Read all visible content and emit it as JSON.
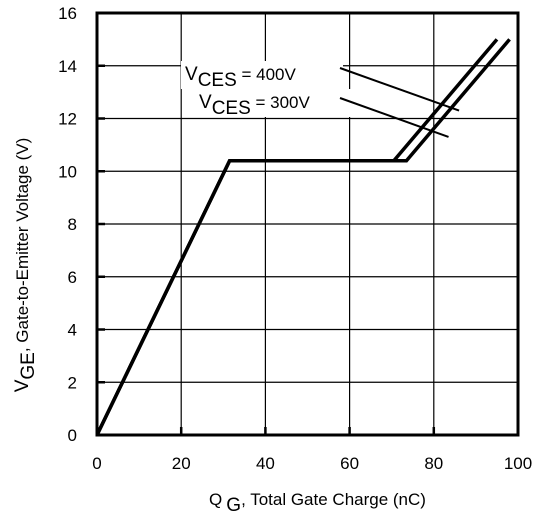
{
  "chart_data": {
    "type": "line",
    "xlabel": {
      "main": "Q",
      "sub": "G",
      "rest": ", Total Gate Charge (nC)"
    },
    "ylabel": {
      "main": "V",
      "sub": "GE",
      "rest": ", Gate-to-Emitter Voltage (V)"
    },
    "xlim": [
      0,
      100
    ],
    "ylim": [
      0,
      16
    ],
    "xticks": [
      0,
      20,
      40,
      60,
      80,
      100
    ],
    "yticks": [
      0,
      2,
      4,
      6,
      8,
      10,
      12,
      14,
      16
    ],
    "grid": true,
    "series": [
      {
        "label": {
          "main": "V",
          "sub": "CES",
          "rest": " = 400V"
        },
        "x": [
          0,
          31.5,
          70.5,
          95
        ],
        "y": [
          0,
          10.4,
          10.4,
          15.0
        ]
      },
      {
        "label": {
          "main": "V",
          "sub": "CES",
          "rest": " = 300V"
        },
        "x": [
          0,
          31.5,
          73.5,
          98
        ],
        "y": [
          0,
          10.4,
          10.4,
          15.0
        ]
      }
    ],
    "annotation_targets": [
      {
        "x": 86,
        "y": 12.3
      },
      {
        "x": 83.5,
        "y": 11.3
      }
    ]
  }
}
